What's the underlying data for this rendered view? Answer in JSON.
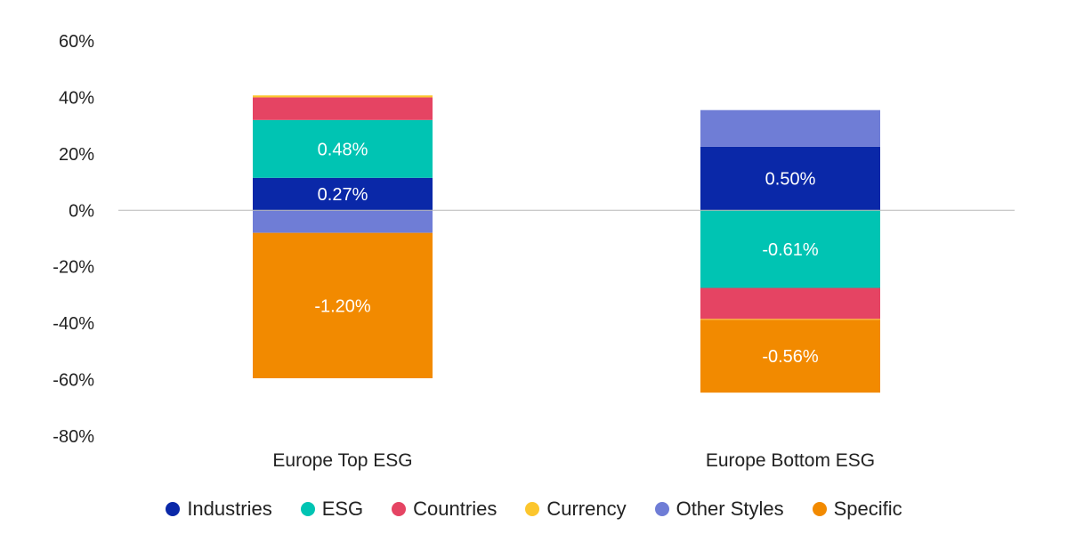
{
  "chart_data": {
    "type": "bar",
    "stacked": true,
    "categories": [
      "Europe Top ESG",
      "Europe Bottom ESG"
    ],
    "ylim": [
      -80,
      60
    ],
    "yticks": [
      60,
      40,
      20,
      0,
      -20,
      -40,
      -60,
      -80
    ],
    "ytick_labels": [
      "60%",
      "40%",
      "20%",
      "0%",
      "-20%",
      "-40%",
      "-60%",
      "-80%"
    ],
    "zero_line": true,
    "grid": false,
    "legend_position": "bottom",
    "series": [
      {
        "name": "Industries",
        "color": "#0a28a8",
        "values": [
          11.5,
          22.5
        ],
        "labels": [
          "0.27%",
          "0.50%"
        ]
      },
      {
        "name": "ESG",
        "color": "#00c4b3",
        "values": [
          20.5,
          -27.5
        ],
        "labels": [
          "0.48%",
          "-0.61%"
        ]
      },
      {
        "name": "Countries",
        "color": "#e54463",
        "values": [
          8.0,
          -11.0
        ],
        "labels": [
          "",
          ""
        ]
      },
      {
        "name": "Currency",
        "color": "#fcc62d",
        "values": [
          0.7,
          -0.3
        ],
        "labels": [
          "",
          ""
        ]
      },
      {
        "name": "Other Styles",
        "color": "#6f7dd6",
        "values": [
          -8.0,
          13.0
        ],
        "labels": [
          "",
          ""
        ]
      },
      {
        "name": "Specific",
        "color": "#f28a00",
        "values": [
          -51.5,
          -25.8
        ],
        "labels": [
          "-1.20%",
          "-0.56%"
        ]
      }
    ]
  }
}
